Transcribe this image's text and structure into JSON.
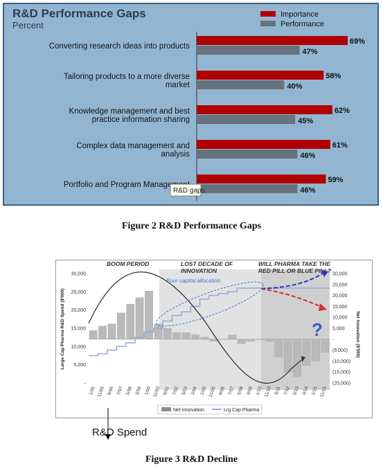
{
  "figure2": {
    "caption": "Figure 2 R&D Performance Gaps",
    "title": "R&D Performance Gaps",
    "subtitle": "Percent",
    "tooltip": "R&D gaps",
    "colors": {
      "importance": "#b00000",
      "performance": "#66737e",
      "background": "#92b6d2",
      "border": "#3e5f7e"
    },
    "chart_data": {
      "type": "bar",
      "orientation": "horizontal",
      "categories": [
        [
          "Converting research ideas into products"
        ],
        [
          "Tailoring products to a more diverse",
          "market"
        ],
        [
          "Knowledge management and best",
          "practice information sharing"
        ],
        [
          "Complex data management and",
          "analysis"
        ],
        [
          "Portfolio and Program Management"
        ]
      ],
      "series": [
        {
          "name": "Importance",
          "values": [
            69,
            58,
            62,
            61,
            59
          ],
          "labels": [
            "69%",
            "58%",
            "62%",
            "61%",
            "59%"
          ]
        },
        {
          "name": "Performance",
          "values": [
            47,
            40,
            45,
            46,
            46
          ],
          "labels": [
            "47%",
            "40%",
            "45%",
            "46%",
            "46%"
          ]
        }
      ],
      "title": "R&D Performance Gaps",
      "subtitle": "Percent",
      "legend": "top-right"
    }
  },
  "figure3": {
    "caption": "Figure 3 R&D Decline",
    "headers": [
      "BOOM PERIOD",
      "LOST DECADE OF",
      "INNOVATION",
      "WILL PHARMA TAKE THE",
      "RED PILL OR BLUE PILL?"
    ],
    "annotation": "Poor capital allocation",
    "question_mark": "?",
    "rd_spend_label": "R&D Spend",
    "colors": {
      "bar": "#b9b9b9",
      "line": "#9aabd6",
      "curve": "#333333",
      "blue_arrow": "#2830c0",
      "red_arrow": "#d03030",
      "question": "#3060c0",
      "shade": "#e2e2e2",
      "shade_dark": "#d0d0d0"
    },
    "chart_data": {
      "type": "bar",
      "x_ticks": [
        "1/95",
        "11/95",
        "9/96",
        "7/97",
        "5/98",
        "3/99",
        "1/00",
        "11/00",
        "9/01",
        "7/02",
        "5/03",
        "3/04",
        "1/05",
        "11/05",
        "9/06",
        "7/07",
        "5/08",
        "3/09",
        "1/10",
        "11/10",
        "9/11",
        "7/12",
        "5/13",
        "3/14",
        "1/15",
        "11/15"
      ],
      "left_axis": {
        "label": "Large Cap Pharma R&D Spend ($'000)",
        "ticks": [
          "30,000",
          "25,000",
          "20,000",
          "15,000",
          "10,000",
          "5,000",
          "-"
        ],
        "range": [
          0,
          30000
        ]
      },
      "right_axis": {
        "label": "Net Innovation ($'000)",
        "ticks": [
          "30,000",
          "25,000",
          "20,000",
          "15,000",
          "10,000",
          "5,000",
          "-",
          "(5,000)",
          "(10,000)",
          "(15,000)",
          "(20,000)"
        ],
        "range": [
          -20000,
          30000
        ]
      },
      "series": [
        {
          "name": "Net innovation",
          "type": "bar",
          "values": [
            4000,
            6000,
            7000,
            12000,
            16000,
            19000,
            22000,
            7000,
            5000,
            3000,
            3000,
            2000,
            1000,
            -1000,
            0,
            2000,
            -2000,
            -1000,
            0,
            -1000,
            -8000,
            -15000,
            -17000,
            -12000,
            -10000,
            -6000
          ]
        },
        {
          "name": "Lrg Cap Pharma",
          "type": "line",
          "values": [
            7500,
            8000,
            9000,
            10000,
            11000,
            12500,
            14000,
            15000,
            17000,
            18500,
            19500,
            21000,
            23000,
            24000,
            24500,
            25000,
            26000,
            26000,
            26000,
            26000,
            26000,
            26000,
            26000,
            26000,
            26000,
            26000
          ]
        }
      ],
      "legend": "bottom"
    }
  }
}
